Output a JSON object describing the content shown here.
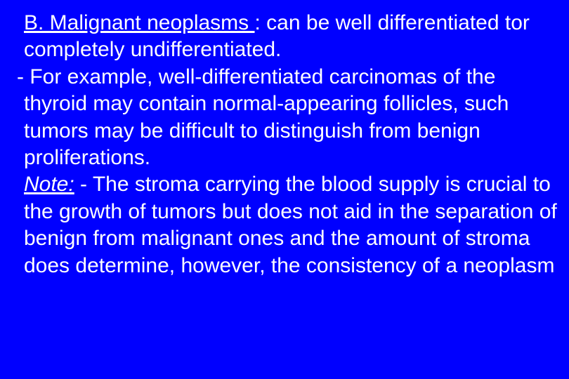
{
  "slide": {
    "background_color": "#0000ff",
    "text_color": "#ffffff",
    "font_family": "Arial",
    "font_size_pt": 30,
    "line_height": 1.28,
    "section_heading": "B. Malignant neoplasms ",
    "section_body": ": can be well differentiated tor completely undifferentiated.",
    "example_lead": "- For example, ",
    "example_body": "well-differentiated carcinomas of the thyroid may contain normal-appearing follicles, such tumors may be difficult to distinguish from benign proliferations.",
    "note_label": "Note:",
    "note_lead": " - ",
    "note_body": "The stroma carrying the blood supply is crucial to the growth of tumors but does not aid in the separation of benign from malignant ones and the amount of stroma does determine, however, the consistency of a neoplasm"
  }
}
